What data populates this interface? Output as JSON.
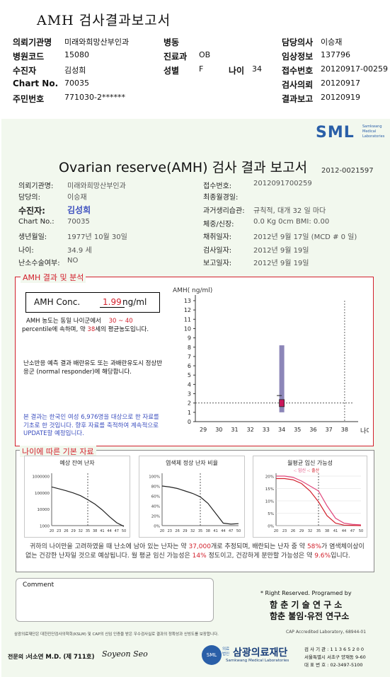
{
  "header": {
    "title": "AMH 검사결과보고서",
    "rows": [
      [
        {
          "k": "의뢰기관명",
          "v": "미래와희망산부인과"
        },
        {
          "k": "병동",
          "v": ""
        },
        {
          "k": "담당의사",
          "v": "이승재"
        }
      ],
      [
        {
          "k": "병원코드",
          "v": "15080"
        },
        {
          "k": "진료과",
          "v": "OB"
        },
        {
          "k": "임상정보",
          "v": "137796"
        }
      ],
      [
        {
          "k": "수진자",
          "v": "김성희"
        },
        {
          "k": "성별",
          "v": "F"
        },
        {
          "k": "접수번호",
          "v": "20120917-00259"
        }
      ],
      [
        {
          "k": "Chart No.",
          "v": "70035"
        },
        {
          "k": "",
          "v": ""
        },
        {
          "k": "검사의뢰",
          "v": "20120917"
        }
      ],
      [
        {
          "k": "주민번호",
          "v": "771030-2******"
        },
        {
          "k": "",
          "v": ""
        },
        {
          "k": "결과보고",
          "v": "20120919"
        }
      ]
    ],
    "age_label": "나이",
    "age_value": "34"
  },
  "report": {
    "logo": "SML",
    "logo_sub1": "Samkwang",
    "logo_sub2": "Medical",
    "logo_sub3": "Laboratories",
    "title": "Ovarian reserve(AMH) 검사 결과 보고서",
    "report_no": "2012-0021597",
    "left_fields": [
      {
        "k": "의뢰기관명:",
        "v": "미래와희망산부인과"
      },
      {
        "k": "담당의:",
        "v": "이승재"
      },
      {
        "k": "수진자:",
        "v": "김성희"
      },
      {
        "k": "Chart No.:",
        "v": "70035"
      },
      {
        "k": "생년월일:",
        "v": "1977년 10월 30일"
      },
      {
        "k": "나이:",
        "v": "34.9 세"
      },
      {
        "k": "난소수술여부:",
        "v": "NO"
      }
    ],
    "right_fields": [
      {
        "k": "접수번호:",
        "v": "2012091700259"
      },
      {
        "k": "최종월경일:",
        "v": ""
      },
      {
        "k": "과거생리습관:",
        "v": "규칙적, 대개    32 일 마다"
      },
      {
        "k": "체중/신장:",
        "v": "0.0 Kg          0cm    BMI:      0.00"
      },
      {
        "k": "채취일자:",
        "v": "2012년 9월 17일   (MCD # 0 일)"
      },
      {
        "k": "검사일자:",
        "v": "2012년 9월 19일"
      },
      {
        "k": "보고일자:",
        "v": "2012년 9월 19일"
      }
    ],
    "amh_section": {
      "title": "AMH 결과 및 분석",
      "conc_label": "AMH Conc.",
      "conc_value": "1.99",
      "conc_unit": "ng/ml",
      "text1a": "AMH 농도는 동일 나이군에서",
      "text1b": "30 ~ 40",
      "text1c": "percentile에 속하며, 약",
      "text1d": "38",
      "text1e": "세의 평균농도입니다.",
      "text2": "난소반응 예측 결과 배란유도 또는 과배란유도시 정상반응군 (normal responder)에 해당합니다.",
      "note": "본 결과는 한국인 여성 6,976명을 대상으로 한 자료를 기초로 한 것입니다. 향후 자료를 축적하여 계속적으로 UPDATE할 예정입니다."
    },
    "age_section": {
      "title": "나이에 따른 기본 자료",
      "chart1_title": "예상 잔여 난자",
      "chart2_title": "염색체 정상 난자 비율",
      "chart3_title": "월평균 임신 가능성",
      "chart3_legend_a": "-: 임신",
      "chart3_legend_b": "-: 출산",
      "summary_a": "귀하의 나이만을 고려하였을 때 난소에 남아 있는 난자는 약",
      "summary_b": "37,000",
      "summary_c": "개로 추정되며, 배란되는 난자 중 약",
      "summary_d": "58%",
      "summary_e": "가 염색체이상이 없는 건강한 난자일 것으로 예상됩니다. 월 평균 임신 가능성은",
      "summary_f": "14%",
      "summary_g": "정도이고, 건강하게 분만할 가능성은 약",
      "summary_h": "9.6%",
      "summary_i": "입니다."
    },
    "comment_label": "Comment",
    "rights": "* Right Reserved. Programed by",
    "lab1": "함 춘  기 술  연 구 소",
    "lab2": "함춘 불임·유전 연구소",
    "footer_small": "삼광의료재단은 대한진단검사의학회(KSLM) 및 CAP의 신임 인증을 받은 우수검사실로 결과의 정확성과 신빙도를 보장합니다.",
    "cap": "CAP  Accredited  Laboratory,  68944-01",
    "doctor_label": "전문의 :",
    "doctor_name": "서소연 M.D. (제 711호)",
    "signature": "Soyeon Seo",
    "org_prefix": "의료법인",
    "org_name": "삼광의료재단",
    "org_sub": "Samkwang Medical Laboratories",
    "org_info1": "검 사 기 관 : 1 1 3 6 5 2 0 0",
    "org_info2": "서울특별시 서초구 양재동 9-60",
    "org_info3": "대 표 번 호 : 02-3497-5100"
  },
  "chart_data": [
    {
      "type": "scatter",
      "title": "",
      "ylabel": "AMH( ng/ml)",
      "xlabel": "나이",
      "x_ticks": [
        29,
        30,
        31,
        32,
        33,
        34,
        35,
        36,
        37,
        38
      ],
      "y_ticks": [
        0,
        1,
        2,
        3,
        4,
        5,
        6,
        7,
        8,
        9,
        10,
        11,
        12,
        13
      ],
      "ylim": [
        0,
        13
      ],
      "xlim": [
        28.5,
        38.5
      ],
      "point": {
        "x": 34,
        "y": 1.99
      },
      "range_bar": {
        "x": 34,
        "low": 1.0,
        "high": 8.2
      },
      "reference_line_y": 2.0,
      "reference_line_x": 38
    },
    {
      "type": "line",
      "title": "예상 잔여 난자",
      "y_ticks": [
        "1000000",
        "100000",
        "10000",
        "1000"
      ],
      "x_ticks": [
        20,
        23,
        26,
        29,
        32,
        35,
        38,
        41,
        44,
        47,
        50
      ],
      "log_scale": true,
      "x": [
        20,
        23,
        26,
        29,
        32,
        35,
        38,
        41,
        44,
        47,
        50
      ],
      "y": [
        220000,
        170000,
        130000,
        95000,
        65000,
        37000,
        20000,
        9000,
        3500,
        1500,
        900
      ],
      "marker_x": 35
    },
    {
      "type": "line",
      "title": "염색체 정상 난자 비율",
      "y_ticks": [
        "100%",
        "80%",
        "60%",
        "40%",
        "20%",
        "0%"
      ],
      "x_ticks": [
        20,
        23,
        26,
        29,
        32,
        35,
        38,
        41,
        44,
        47,
        50
      ],
      "x": [
        20,
        23,
        26,
        29,
        32,
        35,
        38,
        41,
        44,
        47,
        50
      ],
      "y": [
        80,
        78,
        75,
        70,
        65,
        58,
        45,
        25,
        5,
        3,
        4
      ],
      "marker_x": 35
    },
    {
      "type": "line",
      "title": "월평균 임신 가능성",
      "y_ticks": [
        "20%",
        "15%",
        "10%",
        "5%",
        "0%"
      ],
      "x_ticks": [
        20,
        23,
        26,
        29,
        32,
        35,
        38,
        41,
        44,
        47,
        50
      ],
      "series": [
        {
          "name": "임신",
          "color": "#e0457a",
          "x": [
            20,
            23,
            26,
            29,
            32,
            35,
            38,
            41,
            44,
            47,
            50
          ],
          "y": [
            20,
            20,
            19.5,
            18,
            16,
            14,
            8,
            3,
            1,
            0.5,
            0.3
          ]
        },
        {
          "name": "출산",
          "color": "#d2202c",
          "x": [
            20,
            23,
            26,
            29,
            32,
            35,
            38,
            41,
            44,
            47,
            50
          ],
          "y": [
            19,
            19,
            18.5,
            17,
            14,
            9.6,
            4,
            1,
            0.2,
            0.1,
            0
          ]
        }
      ],
      "marker_x": 35
    }
  ],
  "colors": {
    "accent_red": "#d2202c",
    "blue": "#3c4fbf",
    "paper": "#f2f8ee",
    "logo": "#2a5fa8"
  }
}
